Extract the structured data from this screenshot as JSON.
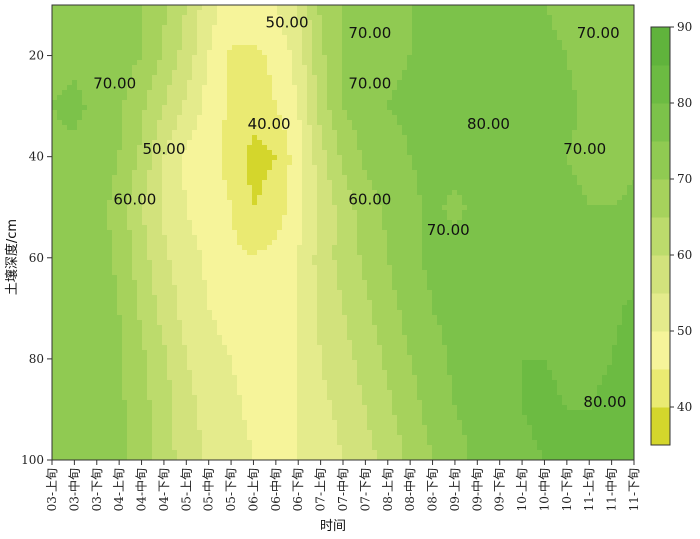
{
  "chart_data": {
    "type": "heatmap",
    "title": "",
    "xlabel": "时间",
    "ylabel": "土壤深度/cm",
    "x_categories": [
      "03-上旬",
      "03-中旬",
      "03-下旬",
      "04-上旬",
      "04-中旬",
      "04-下旬",
      "05-上旬",
      "05-中旬",
      "05-下旬",
      "06-上旬",
      "06-中旬",
      "06-下旬",
      "07-上旬",
      "07-中旬",
      "07-下旬",
      "08-上旬",
      "08-中旬",
      "08-下旬",
      "09-上旬",
      "09-中旬",
      "09-下旬",
      "10-上旬",
      "10-中旬",
      "10-下旬",
      "11-上旬",
      "11-中旬",
      "11-下旬"
    ],
    "y_range": [
      10,
      100
    ],
    "y_ticks": [
      "20",
      "40",
      "60",
      "80",
      "100"
    ],
    "y_ticks_values": [
      20,
      40,
      60,
      80,
      100
    ],
    "colorbar": {
      "range": [
        35,
        90
      ],
      "ticks": [
        "40",
        "50",
        "60",
        "70",
        "80",
        "90"
      ],
      "tick_values": [
        40,
        50,
        60,
        70,
        80,
        90
      ],
      "levels": [
        35,
        40,
        45,
        50,
        55,
        60,
        65,
        70,
        75,
        80,
        85,
        90
      ],
      "colors": [
        "#d4d62c",
        "#eaea72",
        "#f6f49a",
        "#e4eb8c",
        "#d2e27c",
        "#bcdb6c",
        "#a6d25c",
        "#90ca52",
        "#7cc24a",
        "#6cbb42",
        "#60b33c"
      ]
    },
    "depths": [
      10,
      20,
      30,
      40,
      50,
      60,
      70,
      80,
      90,
      100
    ],
    "values": [
      [
        74,
        74,
        73,
        72,
        70,
        66,
        60,
        52,
        48,
        48,
        50,
        56,
        66,
        70,
        72,
        74,
        75,
        75,
        76,
        76,
        76,
        76,
        75,
        74,
        72,
        72,
        74
      ],
      [
        74,
        74,
        73,
        72,
        70,
        64,
        58,
        50,
        44,
        44,
        46,
        52,
        64,
        70,
        72,
        74,
        75,
        76,
        77,
        77,
        77,
        77,
        76,
        75,
        73,
        72,
        73
      ],
      [
        75,
        76,
        74,
        71,
        66,
        60,
        54,
        48,
        44,
        43,
        45,
        50,
        62,
        70,
        73,
        75,
        76,
        77,
        78,
        79,
        79,
        80,
        78,
        76,
        74,
        73,
        74
      ],
      [
        74,
        74,
        73,
        70,
        64,
        55,
        49,
        46,
        44,
        38,
        40,
        48,
        58,
        66,
        71,
        73,
        75,
        76,
        77,
        78,
        78,
        78,
        77,
        75,
        74,
        73,
        74
      ],
      [
        73,
        73,
        72,
        68,
        60,
        54,
        50,
        47,
        45,
        40,
        42,
        48,
        56,
        62,
        68,
        71,
        74,
        76,
        74,
        76,
        77,
        77,
        77,
        76,
        75,
        75,
        76
      ],
      [
        73,
        73,
        72,
        69,
        62,
        56,
        52,
        49,
        46,
        45,
        47,
        50,
        57,
        62,
        66,
        70,
        74,
        76,
        77,
        77,
        77,
        78,
        78,
        77,
        76,
        76,
        78
      ],
      [
        74,
        74,
        73,
        70,
        64,
        58,
        53,
        50,
        48,
        47,
        47,
        50,
        56,
        60,
        64,
        68,
        72,
        75,
        77,
        78,
        79,
        79,
        79,
        78,
        78,
        79,
        81
      ],
      [
        74,
        74,
        73,
        71,
        66,
        61,
        55,
        52,
        50,
        48,
        47,
        50,
        55,
        58,
        62,
        66,
        70,
        73,
        76,
        78,
        79,
        80,
        80,
        79,
        79,
        80,
        82
      ],
      [
        74,
        74,
        73,
        71,
        67,
        62,
        57,
        53,
        51,
        49,
        48,
        50,
        54,
        56,
        60,
        64,
        68,
        72,
        75,
        77,
        79,
        80,
        81,
        80,
        80,
        81,
        83
      ],
      [
        74,
        74,
        73,
        71,
        67,
        62,
        58,
        54,
        52,
        50,
        49,
        50,
        53,
        55,
        58,
        62,
        66,
        70,
        73,
        76,
        78,
        79,
        80,
        80,
        80,
        81,
        83
      ]
    ],
    "contour_labels": [
      {
        "text": "50.00",
        "x": 10.5,
        "y": 13.5
      },
      {
        "text": "70.00",
        "x": 14.2,
        "y": 15.5
      },
      {
        "text": "70.00",
        "x": 24.4,
        "y": 15.5
      },
      {
        "text": "70.00",
        "x": 2.8,
        "y": 25.5
      },
      {
        "text": "70.00",
        "x": 14.2,
        "y": 25.5
      },
      {
        "text": "40.00",
        "x": 9.7,
        "y": 33.5
      },
      {
        "text": "80.00",
        "x": 19.5,
        "y": 33.5
      },
      {
        "text": "50.00",
        "x": 5.0,
        "y": 38.5
      },
      {
        "text": "70.00",
        "x": 23.8,
        "y": 38.5
      },
      {
        "text": "60.00",
        "x": 3.7,
        "y": 48.5
      },
      {
        "text": "60.00",
        "x": 14.2,
        "y": 48.5
      },
      {
        "text": "70.00",
        "x": 17.7,
        "y": 54.5
      },
      {
        "text": "80.00",
        "x": 24.7,
        "y": 88.5
      }
    ]
  }
}
